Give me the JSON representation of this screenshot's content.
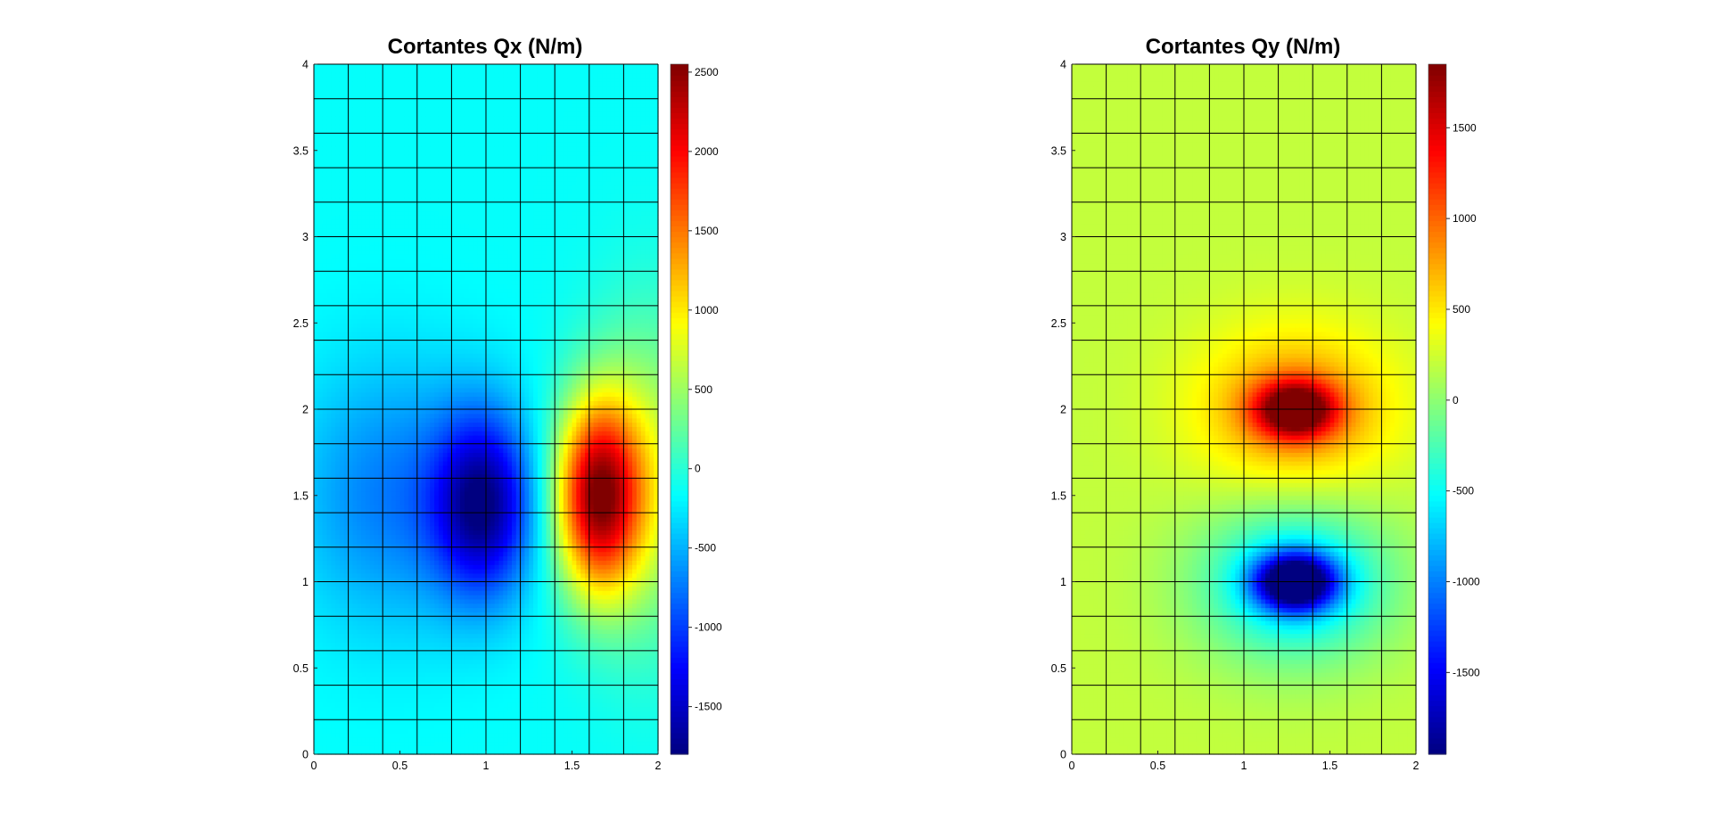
{
  "chart_data": [
    {
      "type": "heatmap",
      "title": "Cortantes Qx (N/m)",
      "xlabel": "",
      "ylabel": "",
      "xlim": [
        0,
        2
      ],
      "ylim": [
        0,
        4
      ],
      "x_ticks": [
        "0",
        "0.5",
        "1",
        "1.5",
        "2"
      ],
      "y_ticks": [
        "0",
        "0.5",
        "1",
        "1.5",
        "2",
        "2.5",
        "3",
        "3.5",
        "4"
      ],
      "mesh": {
        "nx": 10,
        "ny": 20
      },
      "colormap": "jet",
      "clim": [
        -1800,
        2550
      ],
      "colorbar_ticks": [
        -1500,
        -1000,
        -500,
        0,
        500,
        1000,
        1500,
        2000,
        2500
      ],
      "background": -150,
      "peaks": [
        {
          "label": "negative extreme",
          "x": 0.98,
          "y": 1.45,
          "value": -1800
        },
        {
          "label": "positive extreme",
          "x": 1.65,
          "y": 1.5,
          "value": 2550
        }
      ]
    },
    {
      "type": "heatmap",
      "title": "Cortantes Qy (N/m)",
      "xlabel": "",
      "ylabel": "",
      "xlim": [
        0,
        2
      ],
      "ylim": [
        0,
        4
      ],
      "x_ticks": [
        "0",
        "0.5",
        "1",
        "1.5",
        "2"
      ],
      "y_ticks": [
        "0",
        "0.5",
        "1",
        "1.5",
        "2",
        "2.5",
        "3",
        "3.5",
        "4"
      ],
      "mesh": {
        "nx": 10,
        "ny": 20
      },
      "colormap": "jet",
      "clim": [
        -1950,
        1850
      ],
      "colorbar_ticks": [
        -1500,
        -1000,
        -500,
        0,
        500,
        1000,
        1500
      ],
      "background": 200,
      "peaks": [
        {
          "label": "positive extreme",
          "x": 1.3,
          "y": 2.0,
          "value": 1850
        },
        {
          "label": "negative extreme",
          "x": 1.3,
          "y": 1.0,
          "value": -1950
        }
      ]
    }
  ]
}
